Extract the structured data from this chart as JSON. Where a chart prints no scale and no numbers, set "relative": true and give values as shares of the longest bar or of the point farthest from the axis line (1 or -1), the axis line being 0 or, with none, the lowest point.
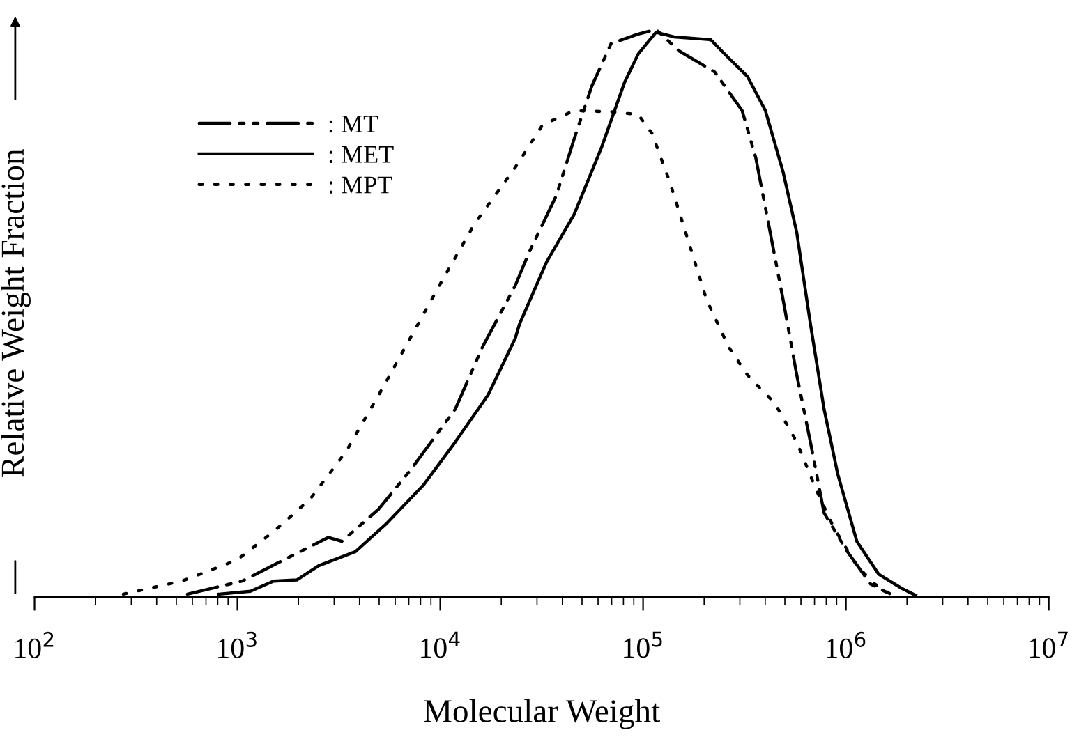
{
  "chart_data": {
    "type": "line",
    "xlabel": "Molecular Weight",
    "ylabel": "Relative Weight Fraction",
    "relative": true,
    "log": "x",
    "grid": false,
    "legend": "top left",
    "xlim": [
      100,
      10000000
    ],
    "xticks": [
      {
        "value": 100,
        "label": "10$^{2}$"
      },
      {
        "value": 1000,
        "label": "10$^{3}$"
      },
      {
        "value": 10000,
        "label": "10$^{4}$"
      },
      {
        "value": 100000,
        "label": "10$^{5}$"
      },
      {
        "value": 1000000,
        "label": "10$^{6}$"
      },
      {
        "value": 10000000,
        "label": "10$^{7}$"
      }
    ],
    "series": [
      {
        "name": ": MT",
        "color": "#000000",
        "line_style": "dashdot",
        "x": [
          567,
          1057,
          1683,
          2805,
          3273,
          4977,
          7112,
          11860,
          16180,
          23450,
          27400,
          37330,
          45710,
          55850,
          69500,
          94700,
          115800,
          150800,
          225700,
          307800,
          359400,
          419800,
          490000,
          572400,
          668300,
          780300,
          1016000,
          1321000,
          1694000
        ],
        "values": [
          0.005,
          0.028,
          0.065,
          0.105,
          0.098,
          0.155,
          0.223,
          0.331,
          0.441,
          0.549,
          0.607,
          0.707,
          0.807,
          0.9,
          0.975,
          0.992,
          1.0,
          0.962,
          0.925,
          0.857,
          0.774,
          0.649,
          0.524,
          0.391,
          0.273,
          0.148,
          0.08,
          0.023,
          0.003
        ]
      },
      {
        "name": ": MET",
        "color": "#000000",
        "line_style": "solid",
        "x": [
          811,
          1159,
          1507,
          1963,
          2515,
          3819,
          5458,
          8299,
          11860,
          17210,
          23450,
          24600,
          33500,
          45710,
          62370,
          81100,
          94700,
          115800,
          141900,
          215400,
          263600,
          327300,
          400900,
          490000,
          572400,
          668300,
          780300,
          912000,
          1132000,
          1452000,
          1888000,
          2205000
        ],
        "values": [
          0.005,
          0.01,
          0.028,
          0.03,
          0.055,
          0.08,
          0.13,
          0.198,
          0.273,
          0.356,
          0.456,
          0.481,
          0.591,
          0.674,
          0.792,
          0.907,
          0.957,
          0.995,
          0.987,
          0.982,
          0.95,
          0.917,
          0.857,
          0.749,
          0.642,
          0.481,
          0.331,
          0.216,
          0.098,
          0.04,
          0.015,
          0.003
        ]
      },
      {
        "name": ": MPT",
        "color": "#000000",
        "line_style": "dotted",
        "x": [
          274,
          533,
          993,
          1507,
          2291,
          3428,
          4977,
          7112,
          10160,
          14730,
          23450,
          31990,
          45710,
          69500,
          94700,
          110600,
          135200,
          165500,
          205600,
          263600,
          327300,
          446700,
          572400,
          711300,
          869000,
          1132000,
          1384000,
          1694000
        ],
        "values": [
          0.005,
          0.028,
          0.065,
          0.115,
          0.173,
          0.256,
          0.356,
          0.456,
          0.556,
          0.657,
          0.757,
          0.832,
          0.857,
          0.855,
          0.85,
          0.817,
          0.732,
          0.632,
          0.524,
          0.441,
          0.391,
          0.341,
          0.273,
          0.19,
          0.123,
          0.055,
          0.023,
          0.003
        ]
      }
    ]
  }
}
